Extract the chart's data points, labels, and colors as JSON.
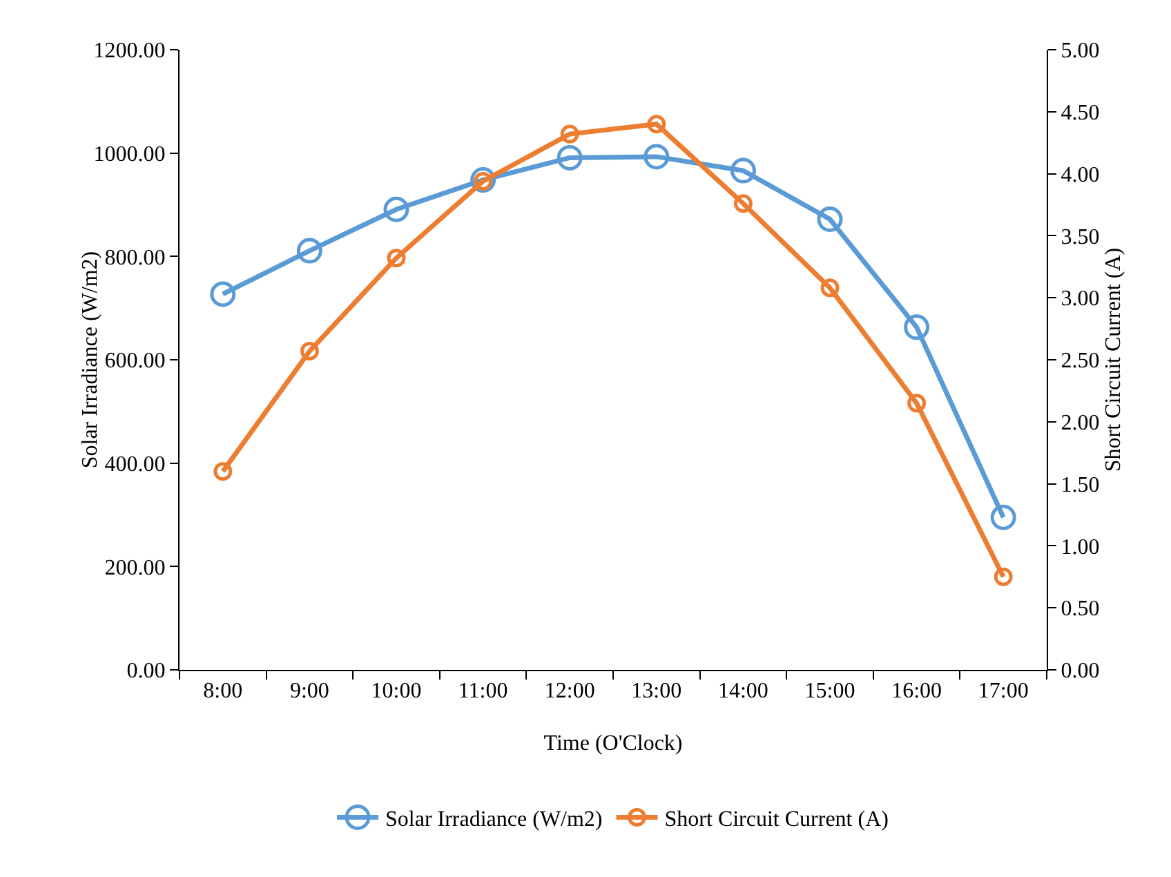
{
  "chart_data": {
    "type": "line",
    "xlabel": "Time (O'Clock)",
    "ylabel": "Solar Irradiance (W/m2)",
    "y2label": "Short Circuit Current (A)",
    "categories": [
      "8:00",
      "9:00",
      "10:00",
      "11:00",
      "12:00",
      "13:00",
      "14:00",
      "15:00",
      "16:00",
      "17:00"
    ],
    "series": [
      {
        "name": "Solar Irradiance (W/m2)",
        "color": "#5b9bd5",
        "values": [
          727,
          811,
          891,
          948,
          991,
          993,
          966,
          872,
          663,
          295
        ]
      },
      {
        "name": "Short Circuit Current (A)",
        "color": "#ed7d31",
        "axis": "y2",
        "values": [
          1.6,
          2.57,
          3.32,
          3.94,
          4.32,
          4.4,
          3.76,
          3.08,
          2.15,
          0.75
        ]
      }
    ],
    "ylim": [
      0,
      1200
    ],
    "yticks": [
      {
        "value": 0,
        "label": "0.00"
      },
      {
        "value": 200,
        "label": "200.00"
      },
      {
        "value": 400,
        "label": "400.00"
      },
      {
        "value": 600,
        "label": "600.00"
      },
      {
        "value": 800,
        "label": "800.00"
      },
      {
        "value": 1000,
        "label": "1000.00"
      },
      {
        "value": 1200,
        "label": "1200.00"
      }
    ],
    "y2lim": [
      0,
      5
    ],
    "y2ticks": [
      {
        "value": 0,
        "label": "0.00"
      },
      {
        "value": 0.5,
        "label": "0.50"
      },
      {
        "value": 1,
        "label": "1.00"
      },
      {
        "value": 1.5,
        "label": "1.50"
      },
      {
        "value": 2,
        "label": "2.00"
      },
      {
        "value": 2.5,
        "label": "2.50"
      },
      {
        "value": 3,
        "label": "3.00"
      },
      {
        "value": 3.5,
        "label": "3.50"
      },
      {
        "value": 4,
        "label": "4.00"
      },
      {
        "value": 4.5,
        "label": "4.50"
      },
      {
        "value": 5,
        "label": "5.00"
      }
    ],
    "grid": false,
    "legend": "bottom",
    "marker": "circle",
    "line_style": "solid"
  }
}
